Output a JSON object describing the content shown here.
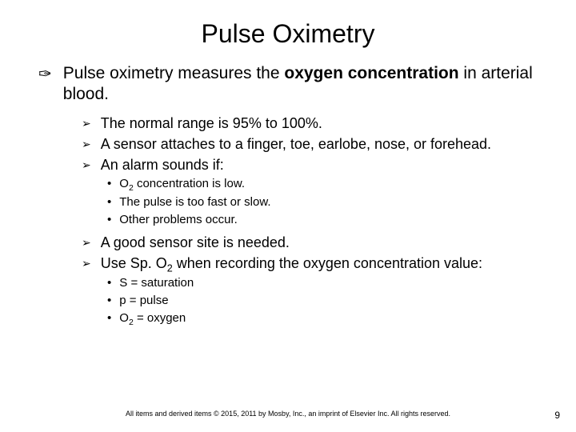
{
  "title": "Pulse Oximetry",
  "bullets": {
    "main_pre": "Pulse oximetry measures the ",
    "main_bold": "oxygen concentration",
    "main_post": " in arterial blood.",
    "sub": [
      "The normal range is 95% to 100%.",
      "A sensor attaches to a finger, toe, earlobe, nose, or forehead.",
      "An alarm sounds if:"
    ],
    "alarm": [
      {
        "pre": "O",
        "sub": "2",
        "post": " concentration is low."
      },
      {
        "pre": "The pulse is too fast or slow.",
        "sub": "",
        "post": ""
      },
      {
        "pre": "Other problems occur.",
        "sub": "",
        "post": ""
      }
    ],
    "sub2": [
      "A good sensor site is needed."
    ],
    "sub2b_pre": "Use Sp. O",
    "sub2b_sub": "2",
    "sub2b_post": " when recording the oxygen concentration value:",
    "defs": [
      {
        "pre": "S = saturation",
        "sub": "",
        "post": ""
      },
      {
        "pre": "p = pulse",
        "sub": "",
        "post": ""
      },
      {
        "pre": "O",
        "sub": "2",
        "post": " = oxygen"
      }
    ]
  },
  "glyphs": {
    "lvl1": "✑",
    "lvl2": "➢",
    "lvl3": "•"
  },
  "footer": "All items and derived items © 2015, 2011 by Mosby, Inc., an imprint of Elsevier Inc. All rights reserved.",
  "page": "9"
}
